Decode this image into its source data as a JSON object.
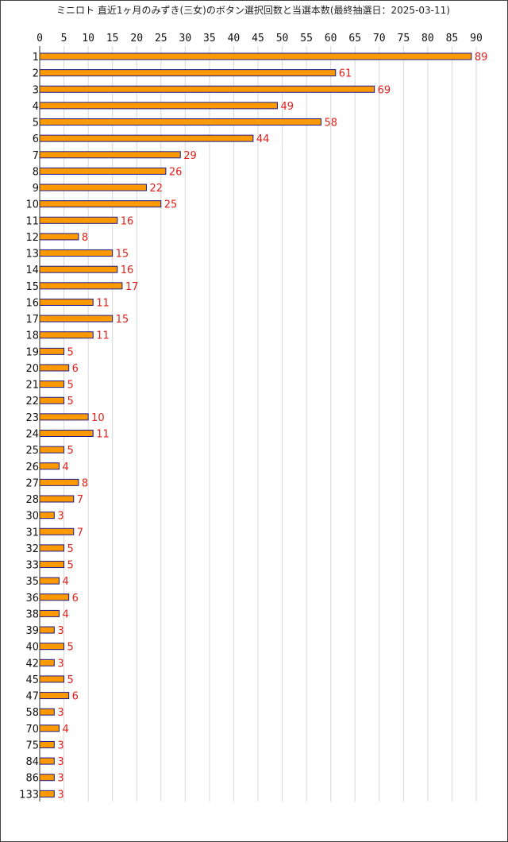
{
  "colors": {
    "bar_fill": "#ff9900",
    "bar_stroke": "#1a1a8c",
    "value_label": "#e0201b",
    "grid": "#d8d8d8",
    "axis": "#333333",
    "frame": "#444444"
  },
  "chart_data": {
    "type": "bar",
    "orientation": "horizontal",
    "title": "ミニロト 直近1ヶ月のみずき(三女)のボタン選択回数と当選本数(最終抽選日：2025-03-11)",
    "xlabel": "",
    "ylabel": "",
    "xlim": [
      0,
      90
    ],
    "xticks": [
      "0",
      "5",
      "10",
      "15",
      "20",
      "25",
      "30",
      "35",
      "40",
      "45",
      "50",
      "55",
      "60",
      "65",
      "70",
      "75",
      "80",
      "85",
      "90"
    ],
    "grid": "vertical",
    "legend": "none",
    "categories": [
      "1",
      "2",
      "3",
      "4",
      "5",
      "6",
      "7",
      "8",
      "9",
      "10",
      "11",
      "12",
      "13",
      "14",
      "15",
      "16",
      "17",
      "18",
      "19",
      "20",
      "21",
      "22",
      "23",
      "24",
      "25",
      "26",
      "27",
      "28",
      "30",
      "31",
      "32",
      "33",
      "35",
      "36",
      "38",
      "39",
      "40",
      "42",
      "45",
      "47",
      "58",
      "70",
      "75",
      "84",
      "86",
      "133"
    ],
    "values": [
      89,
      61,
      69,
      49,
      58,
      44,
      29,
      26,
      22,
      25,
      16,
      8,
      15,
      16,
      17,
      11,
      15,
      11,
      5,
      6,
      5,
      5,
      10,
      11,
      5,
      4,
      8,
      7,
      3,
      7,
      5,
      5,
      4,
      6,
      4,
      3,
      5,
      3,
      5,
      6,
      3,
      4,
      3,
      3,
      3,
      3
    ]
  }
}
